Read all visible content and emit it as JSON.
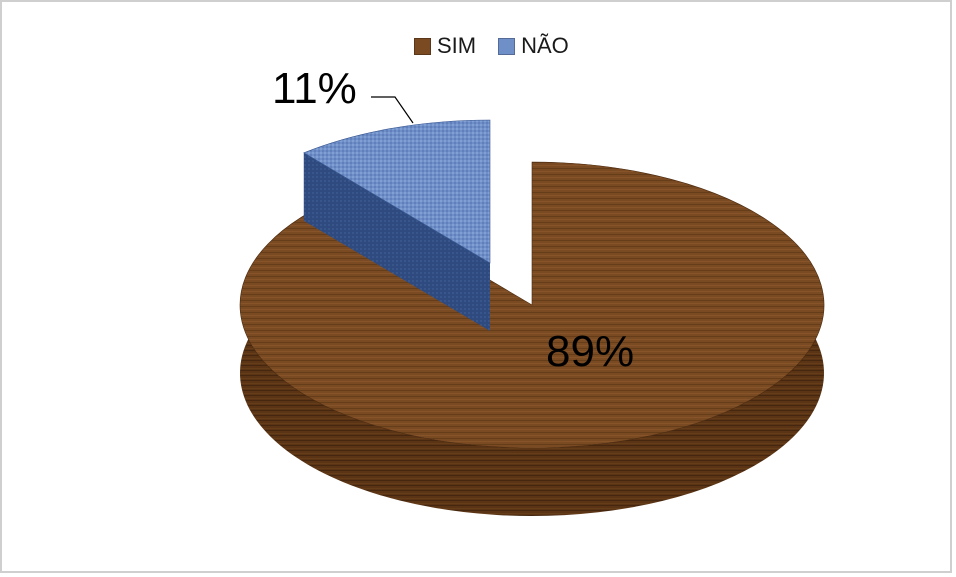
{
  "chart_data": {
    "type": "pie",
    "title": "",
    "legend_position": "top",
    "slices": [
      {
        "name": "SIM",
        "value": 89,
        "label": "89%",
        "color": "#7a4a22",
        "side_color": "#5a3414"
      },
      {
        "name": "NÃO",
        "value": 11,
        "label": "11%",
        "color": "#6f8fc9",
        "side_color": "#2e4a7e",
        "exploded": true
      }
    ]
  }
}
